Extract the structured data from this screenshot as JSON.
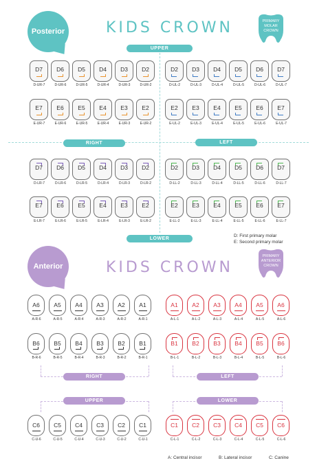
{
  "colors": {
    "teal": "#5ec3c3",
    "purple": "#b89bd0",
    "red": "#d9333f",
    "dark": "#333333",
    "orange": "#e9922c",
    "blue": "#3e7bc4",
    "green": "#4bb54f"
  },
  "posterior": {
    "badge": "Posterior",
    "title": "KIDS CROWN",
    "icon": {
      "line1": "PRIMARY",
      "line2": "MOLAR",
      "line3": "CROWN",
      "name": "tooth-icon"
    },
    "upper_label": "UPPER",
    "right_label": "RIGHT",
    "left_label": "LEFT",
    "lower_label": "LOWER",
    "rows": [
      {
        "teeth": [
          "D7",
          "D6",
          "D5",
          "D4",
          "D3",
          "D2",
          "D2",
          "D3",
          "D4",
          "D5",
          "D6",
          "D7"
        ],
        "codes": [
          "D-UR-7",
          "D-UR-6",
          "D-UR-5",
          "D-UR-4",
          "D-UR-3",
          "D-UR-2",
          "D-UL-2",
          "D-UL-3",
          "D-UL-4",
          "D-UL-5",
          "D-UL-6",
          "D-UL-7"
        ]
      },
      {
        "teeth": [
          "E7",
          "E6",
          "E5",
          "E4",
          "E3",
          "E2",
          "E2",
          "E3",
          "E4",
          "E5",
          "E6",
          "E7"
        ],
        "codes": [
          "E-UR-7",
          "E-UR-6",
          "E-UR-5",
          "E-UR-4",
          "E-UR-3",
          "E-UR-2",
          "E-UL-2",
          "E-UL-3",
          "E-UL-4",
          "E-UL-5",
          "E-UL-6",
          "E-UL-7"
        ]
      },
      {
        "teeth": [
          "D7",
          "D6",
          "D5",
          "D4",
          "D3",
          "D2",
          "D2",
          "D3",
          "D4",
          "D5",
          "D6",
          "D7"
        ],
        "codes": [
          "D-LR-7",
          "D-LR-6",
          "D-LR-5",
          "D-LR-4",
          "D-LR-3",
          "D-LR-2",
          "D-LL-2",
          "D-LL-3",
          "D-LL-4",
          "D-LL-5",
          "D-LL-6",
          "D-LL-7"
        ]
      },
      {
        "teeth": [
          "E7",
          "E6",
          "E5",
          "E4",
          "E3",
          "E2",
          "E2",
          "E3",
          "E4",
          "E5",
          "E6",
          "E7"
        ],
        "codes": [
          "E-LR-7",
          "E-LR-6",
          "E-LR-5",
          "E-LR-4",
          "E-LR-3",
          "E-LR-2",
          "E-LL-2",
          "E-LL-3",
          "E-LL-4",
          "E-LL-5",
          "E-LL-6",
          "E-LL-7"
        ]
      }
    ],
    "legend": [
      "D: First primary molar",
      "E: Second primary molar"
    ]
  },
  "anterior": {
    "badge": "Anterior",
    "title": "KIDS CROWN",
    "icon": {
      "line1": "PRIMARY",
      "line2": "ANTERIOR",
      "line3": "CROWN",
      "name": "tooth-icon"
    },
    "right_label": "RIGHT",
    "left_label": "LEFT",
    "upper_label": "UPPER",
    "lower_label": "LOWER",
    "rows": [
      {
        "teeth": [
          "A6",
          "A5",
          "A4",
          "A3",
          "A2",
          "A1",
          "A1",
          "A2",
          "A3",
          "A4",
          "A5",
          "A6"
        ],
        "codes": [
          "A-R-6",
          "A-R-5",
          "A-R-4",
          "A-R-3",
          "A-R-2",
          "A-R-1",
          "A-L-1",
          "A-L-2",
          "A-L-3",
          "A-L-4",
          "A-L-5",
          "A-L-6"
        ]
      },
      {
        "teeth": [
          "B6",
          "B5",
          "B4",
          "B3",
          "B2",
          "B1",
          "B1",
          "B2",
          "B3",
          "B4",
          "B5",
          "B6"
        ],
        "codes": [
          "B-R-6",
          "B-R-5",
          "B-R-4",
          "B-R-3",
          "B-R-2",
          "B-R-1",
          "B-L-1",
          "B-L-2",
          "B-L-3",
          "B-L-4",
          "B-L-5",
          "B-L-6"
        ]
      },
      {
        "teeth": [
          "C6",
          "C5",
          "C4",
          "C3",
          "C2",
          "C1",
          "C1",
          "C2",
          "C3",
          "C4",
          "C5",
          "C6"
        ],
        "codes": [
          "C-U-6",
          "C-U-5",
          "C-U-4",
          "C-U-3",
          "C-U-2",
          "C-U-1",
          "C-L-1",
          "C-L-2",
          "C-L-3",
          "C-L-4",
          "C-L-5",
          "C-L-6"
        ]
      }
    ],
    "legend": [
      "A: Central incisor",
      "B: Lateral incisor",
      "C: Canine"
    ]
  }
}
